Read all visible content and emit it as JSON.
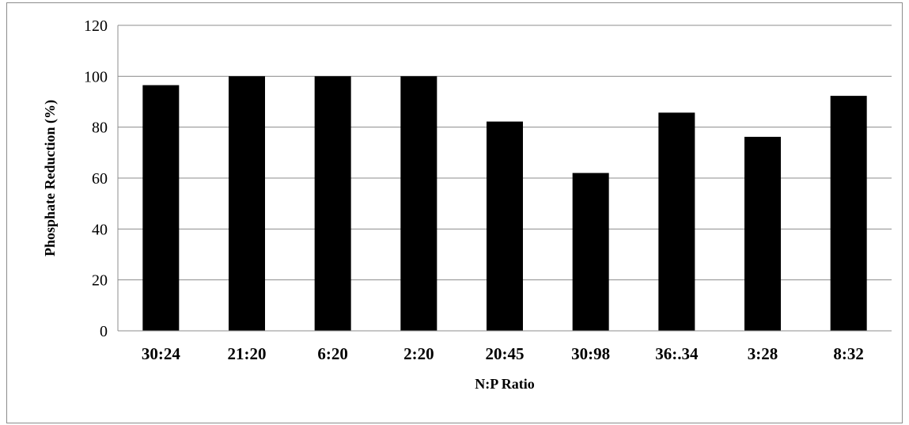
{
  "chart_data": {
    "type": "bar",
    "categories": [
      "30:24",
      "21:20",
      "6:20",
      "2:20",
      "20:45",
      "30:98",
      "36:.34",
      "3:28",
      "8:32"
    ],
    "values": [
      96.5,
      100,
      100,
      100,
      82.2,
      62,
      85.7,
      76.2,
      92.3
    ],
    "xlabel": "N:P Ratio",
    "ylabel": "Phosphate  Reduction (%)",
    "ylim": [
      0,
      120
    ],
    "yticks": [
      0,
      20,
      40,
      60,
      80,
      100,
      120
    ],
    "grid": true,
    "bar_color": "#000000",
    "grid_color": "#8c8c8c"
  }
}
